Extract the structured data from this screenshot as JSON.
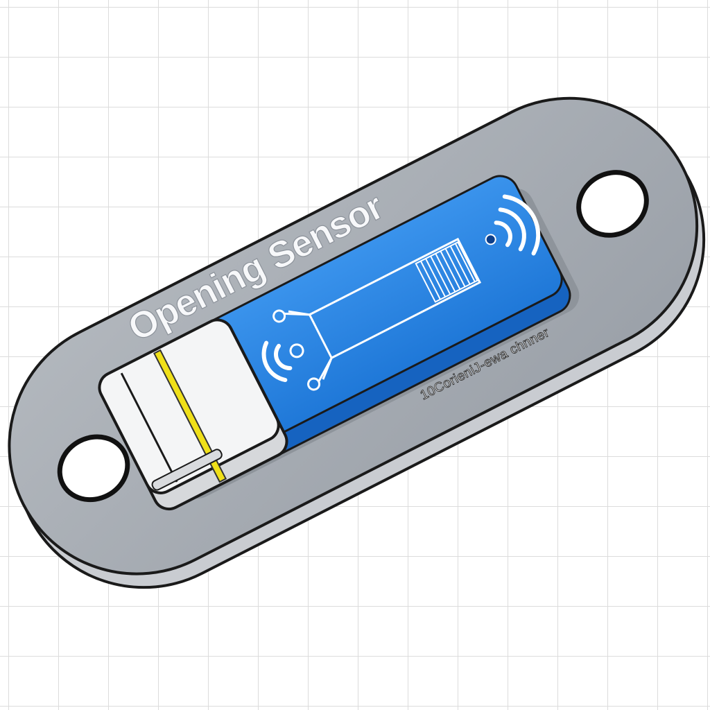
{
  "device": {
    "title": "Opening Sensor",
    "subtitle": "10CorieniJ-ewa chnner",
    "plate_color": "#a7acb3",
    "body_color": "#2b86e6",
    "cap_color": "#f4f5f6",
    "band_color": "#f0e019"
  }
}
